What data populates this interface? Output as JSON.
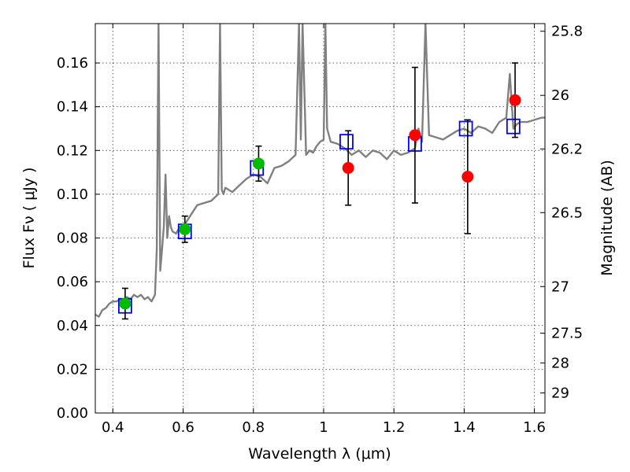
{
  "chart_data": {
    "type": "scatter",
    "xlabel": "Wavelength  λ (μm)",
    "ylabel": "Flux  Fν  ( μJy )",
    "ylabel_right": "Magnitude (AB)",
    "xlim": [
      0.35,
      1.63
    ],
    "ylim": [
      0.0,
      0.178
    ],
    "grid": true,
    "x_ticks": [
      0.4,
      0.6,
      0.8,
      1.0,
      1.2,
      1.4,
      1.6
    ],
    "x_tick_labels": [
      "0.4",
      "0.6",
      "0.8",
      "1",
      "1.2",
      "1.4",
      "1.6"
    ],
    "y_ticks": [
      0.0,
      0.02,
      0.04,
      0.06,
      0.08,
      0.1,
      0.12,
      0.14,
      0.16
    ],
    "y_tick_labels": [
      "0.00",
      "0.02",
      "0.04",
      "0.06",
      "0.08",
      "0.10",
      "0.12",
      "0.14",
      "0.16"
    ],
    "right_ticks": [
      {
        "label": "25.8",
        "flux": 0.1745
      },
      {
        "label": "26",
        "flux": 0.1452
      },
      {
        "label": "26.2",
        "flux": 0.1207
      },
      {
        "label": "26.5",
        "flux": 0.0916
      },
      {
        "label": "27",
        "flux": 0.0578
      },
      {
        "label": "27.5",
        "flux": 0.0365
      },
      {
        "label": "28",
        "flux": 0.0229
      },
      {
        "label": "29",
        "flux": 0.0092
      }
    ],
    "series": [
      {
        "kind": "line",
        "color": "#808080",
        "x": [
          0.35,
          0.36,
          0.37,
          0.38,
          0.39,
          0.4,
          0.41,
          0.42,
          0.43,
          0.44,
          0.45,
          0.46,
          0.47,
          0.48,
          0.49,
          0.5,
          0.51,
          0.52,
          0.525,
          0.53,
          0.535,
          0.54,
          0.545,
          0.55,
          0.555,
          0.56,
          0.565,
          0.57,
          0.58,
          0.59,
          0.6,
          0.62,
          0.64,
          0.66,
          0.68,
          0.7,
          0.705,
          0.71,
          0.715,
          0.72,
          0.74,
          0.76,
          0.78,
          0.8,
          0.82,
          0.84,
          0.86,
          0.88,
          0.9,
          0.92,
          0.93,
          0.935,
          0.94,
          0.95,
          0.96,
          0.97,
          0.98,
          0.99,
          1.0,
          1.005,
          1.01,
          1.02,
          1.04,
          1.06,
          1.08,
          1.1,
          1.12,
          1.14,
          1.16,
          1.18,
          1.2,
          1.22,
          1.24,
          1.26,
          1.27,
          1.28,
          1.29,
          1.3,
          1.32,
          1.34,
          1.36,
          1.38,
          1.4,
          1.42,
          1.44,
          1.46,
          1.48,
          1.5,
          1.52,
          1.53,
          1.54,
          1.55,
          1.56,
          1.58,
          1.6,
          1.62,
          1.63
        ],
        "y": [
          0.045,
          0.044,
          0.047,
          0.048,
          0.05,
          0.051,
          0.051,
          0.052,
          0.05,
          0.053,
          0.052,
          0.054,
          0.053,
          0.054,
          0.052,
          0.053,
          0.051,
          0.054,
          0.075,
          0.178,
          0.065,
          0.075,
          0.085,
          0.109,
          0.08,
          0.09,
          0.085,
          0.083,
          0.082,
          0.085,
          0.085,
          0.09,
          0.095,
          0.096,
          0.097,
          0.1,
          0.178,
          0.102,
          0.1,
          0.103,
          0.101,
          0.104,
          0.107,
          0.109,
          0.108,
          0.105,
          0.112,
          0.113,
          0.115,
          0.118,
          0.178,
          0.125,
          0.178,
          0.118,
          0.12,
          0.119,
          0.122,
          0.124,
          0.125,
          0.178,
          0.13,
          0.124,
          0.123,
          0.121,
          0.118,
          0.12,
          0.117,
          0.12,
          0.119,
          0.116,
          0.12,
          0.118,
          0.119,
          0.121,
          0.13,
          0.124,
          0.178,
          0.127,
          0.126,
          0.125,
          0.127,
          0.129,
          0.13,
          0.128,
          0.131,
          0.13,
          0.128,
          0.133,
          0.135,
          0.155,
          0.13,
          0.132,
          0.133,
          0.133,
          0.134,
          0.135,
          0.135
        ]
      },
      {
        "kind": "points",
        "marker": "square-open",
        "color": "#0000ff",
        "x": [
          0.435,
          0.605,
          0.81,
          1.065,
          1.26,
          1.405,
          1.54
        ],
        "y": [
          0.049,
          0.083,
          0.112,
          0.124,
          0.123,
          0.13,
          0.131
        ]
      },
      {
        "kind": "points",
        "marker": "circle",
        "color": "#00bb00",
        "x": [
          0.435,
          0.605,
          0.815
        ],
        "y": [
          0.05,
          0.084,
          0.114
        ],
        "yerr_low": [
          0.043,
          0.078,
          0.106
        ],
        "yerr_high": [
          0.057,
          0.09,
          0.122
        ]
      },
      {
        "kind": "points",
        "marker": "circle",
        "color": "#ff0000",
        "x": [
          1.07,
          1.26,
          1.41,
          1.545
        ],
        "y": [
          0.112,
          0.127,
          0.108,
          0.143
        ],
        "yerr_low": [
          0.095,
          0.096,
          0.082,
          0.126
        ],
        "yerr_high": [
          0.129,
          0.158,
          0.134,
          0.16
        ]
      }
    ]
  }
}
